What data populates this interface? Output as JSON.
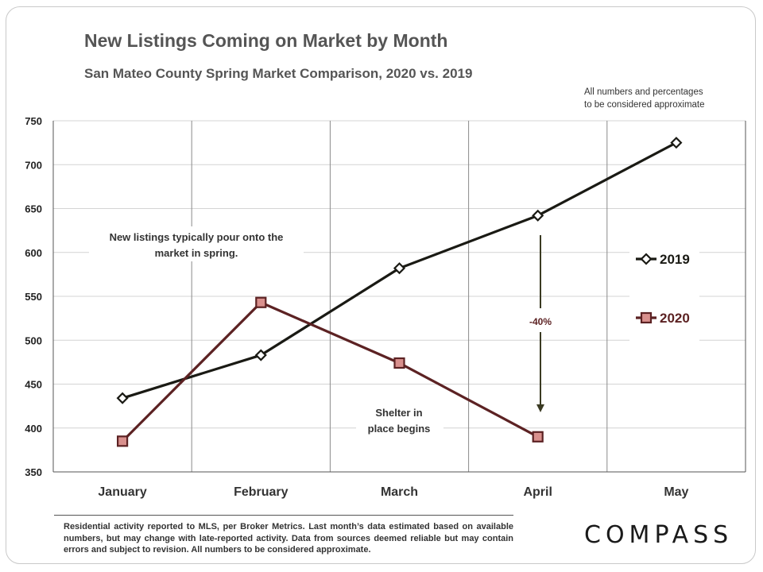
{
  "header": {
    "title": "New Listings Coming on Market by Month",
    "subtitle": "San Mateo County Spring Market Comparison,  2020 vs. 2019",
    "note_line1": "All numbers and percentages",
    "note_line2": "to be considered approximate"
  },
  "footer": {
    "text": "Residential activity reported to MLS, per Broker Metrics. Last month’s data estimated based on available numbers, but may change with late-reported activity. Data from sources deemed reliable but may contain errors and subject to revision. All numbers to be considered approximate."
  },
  "brand": {
    "logo": "COMPASS"
  },
  "chart_data": {
    "type": "line",
    "categories": [
      "January",
      "February",
      "March",
      "April",
      "May"
    ],
    "ylim": [
      350,
      750
    ],
    "yticks": [
      350,
      400,
      450,
      500,
      550,
      600,
      650,
      700,
      750
    ],
    "grid": true,
    "legend_position": "right",
    "series": [
      {
        "name": "2019",
        "values": [
          434,
          483,
          582,
          642,
          725
        ],
        "color": "#1a1a14",
        "marker": "diamond"
      },
      {
        "name": "2020",
        "values": [
          385,
          543,
          474,
          390,
          null
        ],
        "color": "#5c2223",
        "marker_fill": "#d9908d",
        "marker": "square"
      }
    ],
    "annotations": [
      {
        "text_line1": "New listings typically pour onto the",
        "text_line2": "market in spring."
      },
      {
        "text_line1": "Shelter in",
        "text_line2": "place begins"
      },
      {
        "text": "-40%"
      }
    ]
  }
}
